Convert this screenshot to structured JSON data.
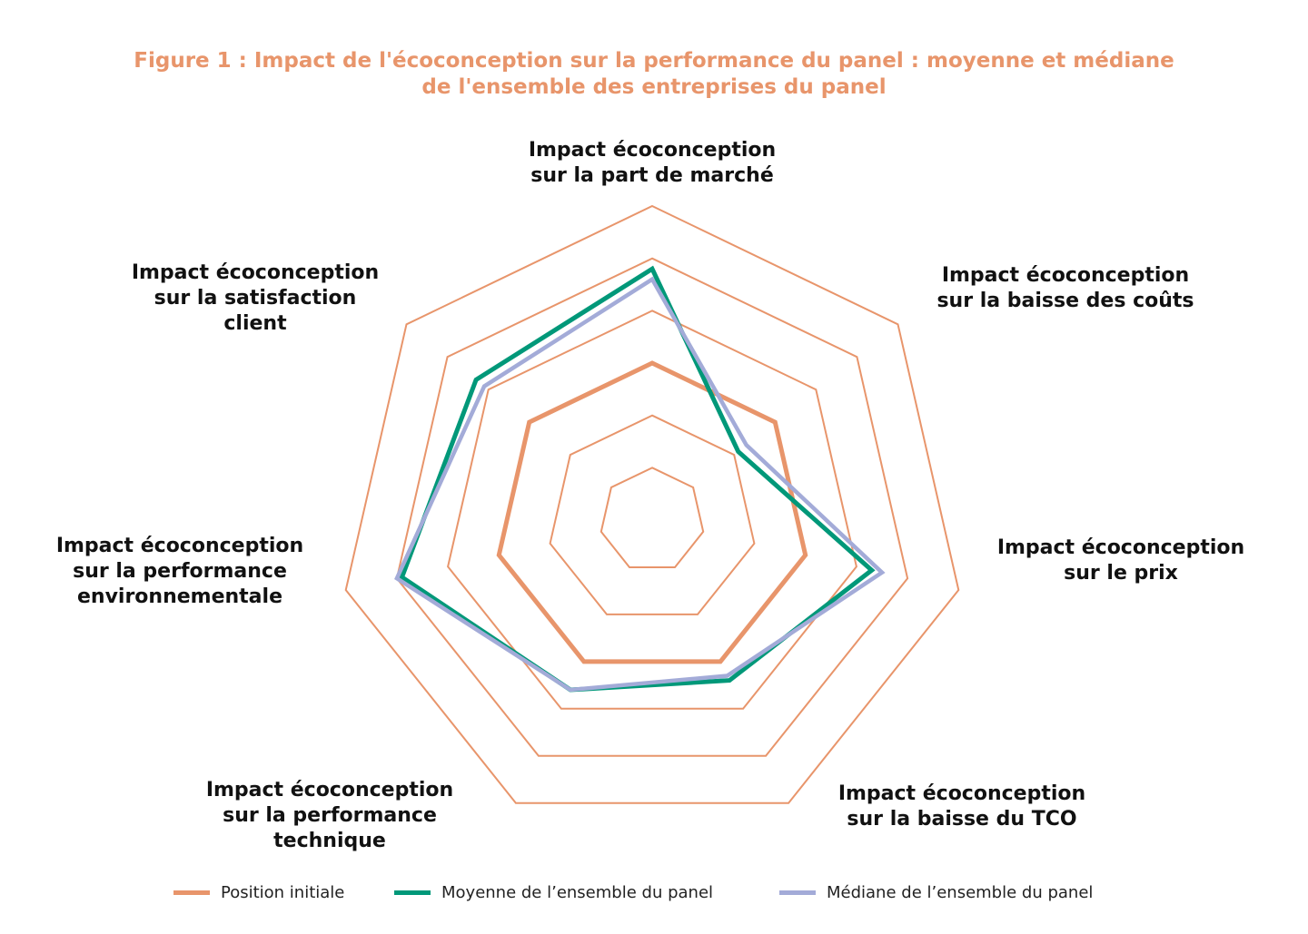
{
  "chart_data": {
    "type": "radar",
    "title_line1": "Figure 1 : Impact de l'écoconception sur la performance du panel : moyenne et médiane",
    "title_line2": "de l'ensemble des entreprises du panel",
    "axes": [
      "Impact écoconception\nsur la part de marché",
      "Impact écoconception\nsur la baisse des coûts",
      "Impact écoconception\nsur le prix",
      "Impact écoconception\nsur la baisse du TCO",
      "Impact écoconception\nsur la performance\ntechnique",
      "Impact écoconception\nsur la performance\nenvironnementale",
      "Impact écoconception\nsur la satisfaction\nclient"
    ],
    "rmax": 6,
    "rings": [
      1,
      2,
      3,
      4,
      5,
      6
    ],
    "grid": true,
    "legend_position": "bottom",
    "series": [
      {
        "name": "Position initiale",
        "color": "#e8956b",
        "values": [
          3,
          3,
          3,
          3,
          3,
          3,
          3
        ]
      },
      {
        "name": "Moyenne de l’ensemble du panel",
        "color": "#009879",
        "values": [
          4.8,
          2.1,
          4.3,
          3.4,
          3.6,
          4.9,
          4.3
        ]
      },
      {
        "name": "Médiane de l’ensemble du panel",
        "color": "#a3abd8",
        "values": [
          4.6,
          2.3,
          4.5,
          3.3,
          3.6,
          5.0,
          4.1
        ]
      }
    ]
  }
}
